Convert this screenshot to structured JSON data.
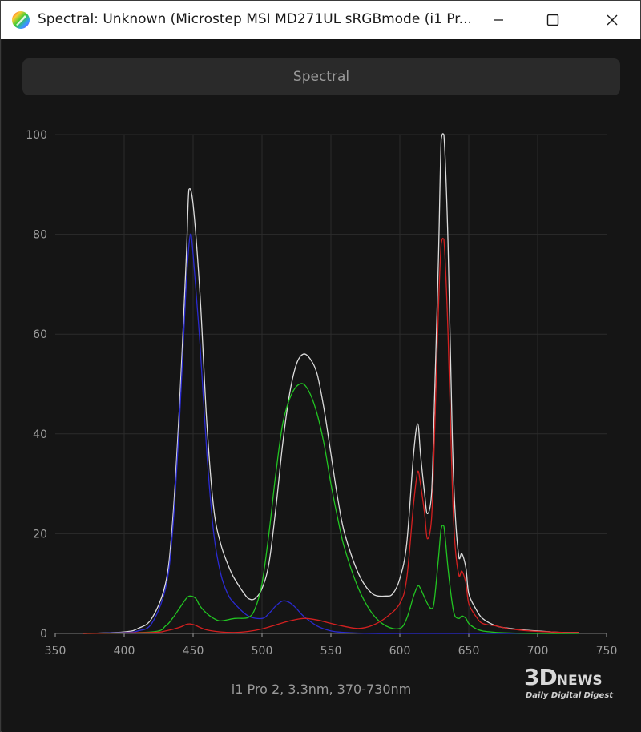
{
  "window": {
    "title": "Spectral: Unknown (Microstep MSI MD271UL sRGBmode (i1 Pr...",
    "app_icon": "rainbow-palette-icon",
    "controls": {
      "minimize": "minimize-icon",
      "maximize": "maximize-icon",
      "close": "close-icon"
    }
  },
  "tab": {
    "label": "Spectral"
  },
  "caption": "i1 Pro 2, 3.3nm, 370-730nm",
  "watermark": {
    "main": "3D",
    "news": "NEWS",
    "sub": "Daily Digital Digest"
  },
  "colors": {
    "background": "#151515",
    "grid": "#2c2c2c",
    "axis_text": "#a0a0a0"
  },
  "chart_data": {
    "type": "line",
    "xlim": [
      350,
      750
    ],
    "ylim": [
      0,
      100
    ],
    "x_ticks": [
      350,
      400,
      450,
      500,
      550,
      600,
      650,
      700,
      750
    ],
    "y_ticks": [
      0,
      20,
      40,
      60,
      80,
      100
    ],
    "grid": true,
    "series": [
      {
        "color": "#dcdcdc",
        "x": [
          370,
          400,
          410,
          420,
          430,
          435,
          440,
          445,
          447,
          450,
          455,
          460,
          465,
          470,
          475,
          480,
          490,
          495,
          500,
          505,
          510,
          515,
          520,
          525,
          530,
          535,
          540,
          545,
          550,
          555,
          560,
          570,
          580,
          590,
          595,
          600,
          605,
          610,
          613,
          615,
          618,
          620,
          623,
          625,
          628,
          630,
          632,
          635,
          638,
          640,
          643,
          645,
          648,
          650,
          655,
          660,
          670,
          680,
          690,
          700,
          710,
          720,
          730
        ],
        "values": [
          0,
          0.3,
          1,
          3,
          10,
          22,
          45,
          75,
          89,
          86,
          68,
          42,
          25,
          18,
          14,
          11,
          7,
          7,
          9,
          14,
          25,
          38,
          48,
          54,
          56,
          55,
          52,
          45,
          36,
          27,
          20,
          12,
          8,
          7.5,
          8,
          11,
          18,
          36,
          42,
          36,
          28,
          24,
          28,
          45,
          75,
          99,
          100,
          78,
          40,
          25,
          15,
          16,
          13,
          8,
          5,
          3,
          1.5,
          1,
          0.7,
          0.5,
          0.3,
          0.2,
          0.2
        ]
      },
      {
        "color": "#2a2ad0",
        "x": [
          370,
          400,
          410,
          420,
          430,
          435,
          440,
          445,
          448,
          450,
          455,
          460,
          465,
          470,
          475,
          480,
          490,
          500,
          505,
          510,
          515,
          520,
          525,
          530,
          540,
          550,
          560,
          580,
          600,
          650,
          700,
          730
        ],
        "values": [
          0,
          0.2,
          0.5,
          2,
          9,
          20,
          42,
          70,
          80,
          76,
          58,
          36,
          20,
          12,
          8,
          6,
          3.5,
          3,
          4,
          5.5,
          6.5,
          6.2,
          5,
          3.5,
          1.5,
          0.5,
          0.2,
          0,
          0,
          0,
          0,
          0
        ]
      },
      {
        "color": "#22c422",
        "x": [
          370,
          420,
          430,
          435,
          440,
          445,
          448,
          452,
          455,
          460,
          465,
          470,
          480,
          490,
          495,
          500,
          505,
          510,
          515,
          520,
          525,
          530,
          535,
          540,
          545,
          550,
          555,
          560,
          570,
          580,
          590,
          600,
          605,
          610,
          613,
          615,
          620,
          623,
          625,
          628,
          630,
          632,
          635,
          638,
          640,
          643,
          645,
          648,
          650,
          655,
          660,
          670,
          680,
          700,
          730
        ],
        "values": [
          0,
          0.3,
          1.5,
          3,
          5,
          7,
          7.5,
          7,
          5.5,
          4,
          3,
          2.5,
          3,
          3.2,
          5,
          10,
          20,
          32,
          42,
          47,
          49.5,
          50,
          48,
          44,
          38,
          30,
          23,
          17,
          9,
          4,
          1.5,
          1,
          3,
          7.5,
          9.5,
          9,
          6,
          5,
          6.5,
          15,
          21,
          21.5,
          13,
          6,
          3.5,
          3,
          3.5,
          3,
          2,
          1,
          0.5,
          0.2,
          0.1,
          0,
          0
        ]
      },
      {
        "color": "#d42020",
        "x": [
          370,
          420,
          430,
          440,
          445,
          448,
          452,
          455,
          460,
          470,
          480,
          490,
          500,
          510,
          520,
          530,
          540,
          550,
          560,
          570,
          580,
          590,
          600,
          605,
          610,
          613,
          615,
          618,
          620,
          623,
          625,
          628,
          630,
          632,
          635,
          638,
          640,
          643,
          645,
          648,
          650,
          655,
          660,
          670,
          680,
          690,
          700,
          710,
          720,
          730
        ],
        "values": [
          0,
          0.2,
          0.5,
          1.2,
          1.8,
          1.9,
          1.6,
          1.2,
          0.7,
          0.3,
          0.2,
          0.4,
          0.9,
          1.7,
          2.5,
          3,
          2.7,
          2,
          1.4,
          1,
          1.6,
          3.2,
          6,
          11,
          26,
          32.5,
          30,
          24,
          19,
          23,
          38,
          65,
          78,
          79,
          60,
          30,
          18,
          11.5,
          12.5,
          10,
          6,
          3.5,
          2,
          1.5,
          0.9,
          0.6,
          0.4,
          0.3,
          0.2,
          0.2
        ]
      }
    ]
  }
}
